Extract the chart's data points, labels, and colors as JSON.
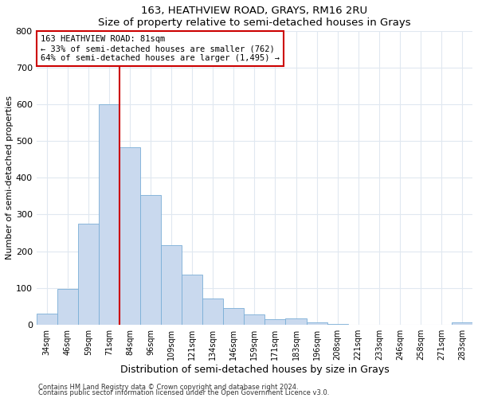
{
  "title": "163, HEATHVIEW ROAD, GRAYS, RM16 2RU",
  "subtitle": "Size of property relative to semi-detached houses in Grays",
  "xlabel": "Distribution of semi-detached houses by size in Grays",
  "ylabel": "Number of semi-detached properties",
  "bar_labels": [
    "34sqm",
    "46sqm",
    "59sqm",
    "71sqm",
    "84sqm",
    "96sqm",
    "109sqm",
    "121sqm",
    "134sqm",
    "146sqm",
    "159sqm",
    "171sqm",
    "183sqm",
    "196sqm",
    "208sqm",
    "221sqm",
    "233sqm",
    "246sqm",
    "258sqm",
    "271sqm",
    "283sqm"
  ],
  "bar_values": [
    30,
    97,
    275,
    600,
    483,
    353,
    217,
    137,
    70,
    46,
    28,
    15,
    17,
    5,
    1,
    0,
    0,
    0,
    0,
    0,
    5
  ],
  "bar_color": "#c9d9ee",
  "bar_edge_color": "#7aaed6",
  "vline_color": "#cc0000",
  "annotation_title": "163 HEATHVIEW ROAD: 81sqm",
  "annotation_line1": "← 33% of semi-detached houses are smaller (762)",
  "annotation_line2": "64% of semi-detached houses are larger (1,495) →",
  "annotation_box_color": "#ffffff",
  "annotation_box_edge": "#cc0000",
  "ylim": [
    0,
    800
  ],
  "yticks": [
    0,
    100,
    200,
    300,
    400,
    500,
    600,
    700,
    800
  ],
  "footer1": "Contains HM Land Registry data © Crown copyright and database right 2024.",
  "footer2": "Contains public sector information licensed under the Open Government Licence v3.0.",
  "bg_color": "#ffffff",
  "plot_bg_color": "#ffffff",
  "grid_color": "#e0e8f0"
}
